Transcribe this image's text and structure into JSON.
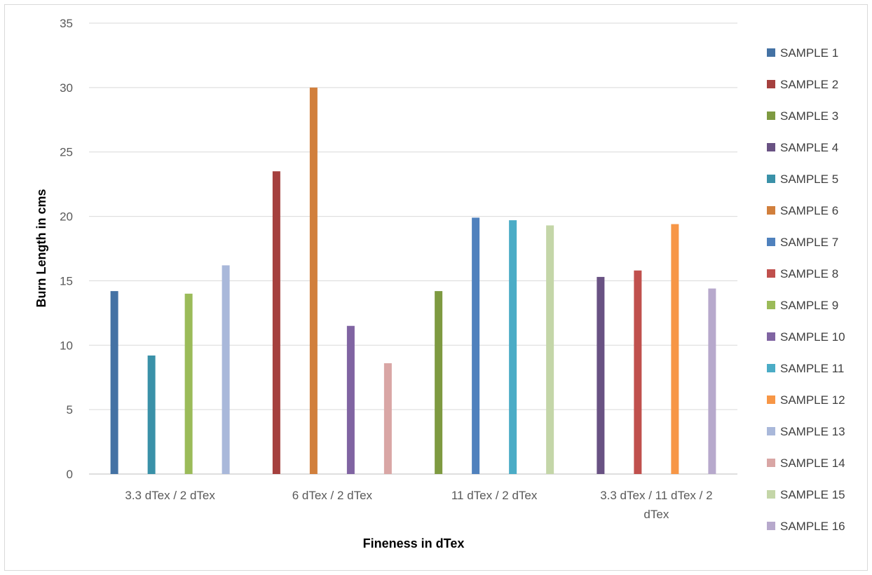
{
  "chart_data": {
    "type": "bar",
    "title": "",
    "xlabel": "Fineness in dTex",
    "ylabel": "Burn Length in cms",
    "ylim": [
      0,
      35
    ],
    "yticks": [
      0,
      5,
      10,
      15,
      20,
      25,
      30,
      35
    ],
    "grid": true,
    "legend_position": "right",
    "categories": [
      [
        "3.3 dTex / 2 dTex"
      ],
      [
        "6 dTex / 2 dTex"
      ],
      [
        "11 dTex / 2 dTex"
      ],
      [
        "3.3 dTex / 11 dTex / 2",
        "dTex"
      ]
    ],
    "series": [
      {
        "name": "SAMPLE 1",
        "color": "#4472a4",
        "values": [
          14.2,
          null,
          null,
          null
        ]
      },
      {
        "name": "SAMPLE 2",
        "color": "#a5403e",
        "values": [
          null,
          23.5,
          null,
          null
        ]
      },
      {
        "name": "SAMPLE 3",
        "color": "#7e9a41",
        "values": [
          null,
          null,
          14.2,
          null
        ]
      },
      {
        "name": "SAMPLE 4",
        "color": "#695283",
        "values": [
          null,
          null,
          null,
          15.3
        ]
      },
      {
        "name": "SAMPLE 5",
        "color": "#3a91a8",
        "values": [
          9.2,
          null,
          null,
          null
        ]
      },
      {
        "name": "SAMPLE 6",
        "color": "#d17f3c",
        "values": [
          null,
          30.0,
          null,
          null
        ]
      },
      {
        "name": "SAMPLE 7",
        "color": "#4f81bd",
        "values": [
          null,
          null,
          19.9,
          null
        ]
      },
      {
        "name": "SAMPLE 8",
        "color": "#c0504d",
        "values": [
          null,
          null,
          null,
          15.8
        ]
      },
      {
        "name": "SAMPLE 9",
        "color": "#9bbb59",
        "values": [
          14.0,
          null,
          null,
          null
        ]
      },
      {
        "name": "SAMPLE 10",
        "color": "#8064a2",
        "values": [
          null,
          11.5,
          null,
          null
        ]
      },
      {
        "name": "SAMPLE 11",
        "color": "#4bacc6",
        "values": [
          null,
          null,
          19.7,
          null
        ]
      },
      {
        "name": "SAMPLE 12",
        "color": "#f79646",
        "values": [
          null,
          null,
          null,
          19.4
        ]
      },
      {
        "name": "SAMPLE 13",
        "color": "#a9b8da",
        "values": [
          16.2,
          null,
          null,
          null
        ]
      },
      {
        "name": "SAMPLE 14",
        "color": "#d9a6a5",
        "values": [
          null,
          8.6,
          null,
          null
        ]
      },
      {
        "name": "SAMPLE 15",
        "color": "#c4d6a8",
        "values": [
          null,
          null,
          19.3,
          null
        ]
      },
      {
        "name": "SAMPLE 16",
        "color": "#b7a9cc",
        "values": [
          null,
          null,
          null,
          14.4
        ]
      }
    ]
  }
}
